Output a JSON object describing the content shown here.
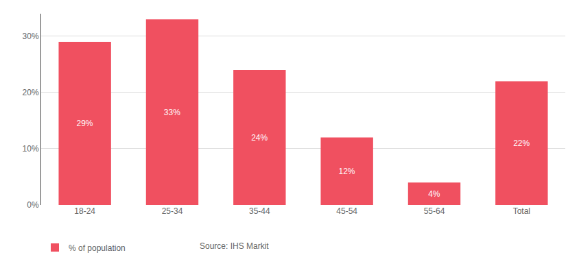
{
  "chart_data": {
    "type": "bar",
    "categories": [
      "18-24",
      "25-34",
      "35-44",
      "45-54",
      "55-64",
      "Total"
    ],
    "series": [
      {
        "name": "% of population",
        "color": "#f05060",
        "values": [
          29,
          33,
          24,
          12,
          4,
          22
        ],
        "value_labels": [
          "29%",
          "33%",
          "24%",
          "12%",
          "4%",
          "22%"
        ]
      }
    ],
    "data_labels": true,
    "ylim": [
      0,
      34
    ],
    "yticks": [
      {
        "value": 0,
        "label": "0%"
      },
      {
        "value": 10,
        "label": "10%"
      },
      {
        "value": 20,
        "label": "20%"
      },
      {
        "value": 30,
        "label": "30%"
      }
    ],
    "grid": true,
    "legend": "lower left",
    "annotations": [
      "Source: IHS Markit"
    ]
  }
}
